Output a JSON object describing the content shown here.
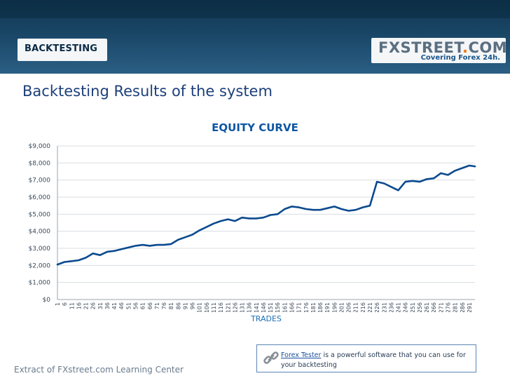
{
  "header": {
    "section_label": "BACKTESTING",
    "logo_main_a": "FXSTREET",
    "logo_dot": ".",
    "logo_main_b": "COM",
    "logo_tagline": "Covering Forex 24h."
  },
  "headline": "Backtesting Results of the system",
  "chart_data": {
    "type": "line",
    "title": "EQUITY CURVE",
    "xlabel": "TRADES",
    "ylabel": "",
    "ylim": [
      0,
      9000
    ],
    "y_ticks": [
      0,
      1000,
      2000,
      3000,
      4000,
      5000,
      6000,
      7000,
      8000,
      9000
    ],
    "y_tick_labels": [
      "$0",
      "$1,000",
      "$2,000",
      "$3,000",
      "$4,000",
      "$5,000",
      "$6,000",
      "$7,000",
      "$8,000",
      "$9,000"
    ],
    "x_tick_labels": [
      "1",
      "6",
      "11",
      "16",
      "21",
      "26",
      "31",
      "36",
      "41",
      "46",
      "51",
      "56",
      "61",
      "66",
      "71",
      "76",
      "81",
      "86",
      "91",
      "96",
      "101",
      "106",
      "111",
      "116",
      "121",
      "126",
      "131",
      "136",
      "141",
      "146",
      "151",
      "156",
      "161",
      "166",
      "171",
      "176",
      "181",
      "186",
      "191",
      "196",
      "201",
      "206",
      "211",
      "216",
      "221",
      "226",
      "231",
      "236",
      "241",
      "246",
      "251",
      "256",
      "261",
      "266",
      "271",
      "276",
      "281",
      "286",
      "291"
    ],
    "grid": true,
    "series": [
      {
        "color": "#0b4a8f",
        "x": [
          1,
          6,
          11,
          16,
          21,
          26,
          31,
          36,
          41,
          46,
          51,
          56,
          61,
          66,
          71,
          76,
          81,
          86,
          91,
          96,
          101,
          106,
          111,
          116,
          121,
          126,
          131,
          136,
          141,
          146,
          151,
          156,
          161,
          166,
          171,
          176,
          181,
          186,
          191,
          196,
          201,
          206,
          211,
          216,
          221,
          226,
          231,
          236,
          241,
          246,
          251,
          256,
          261,
          266,
          271,
          276,
          281,
          286,
          291,
          295
        ],
        "y": [
          2050,
          2200,
          2250,
          2300,
          2450,
          2700,
          2600,
          2800,
          2850,
          2950,
          3050,
          3150,
          3200,
          3150,
          3200,
          3200,
          3250,
          3500,
          3650,
          3800,
          4050,
          4250,
          4450,
          4600,
          4700,
          4600,
          4800,
          4750,
          4750,
          4800,
          4950,
          5000,
          5300,
          5450,
          5400,
          5300,
          5250,
          5250,
          5350,
          5450,
          5300,
          5200,
          5250,
          5400,
          5500,
          6900,
          6800,
          6600,
          6400,
          6900,
          6950,
          6900,
          7050,
          7100,
          7400,
          7300,
          7550,
          7700,
          7850,
          7800
        ]
      }
    ]
  },
  "note": {
    "link_text": "Forex Tester",
    "text": " is a powerful software that you can use for your backtesting"
  },
  "footer_text": "Extract of FXstreet.com Learning Center"
}
